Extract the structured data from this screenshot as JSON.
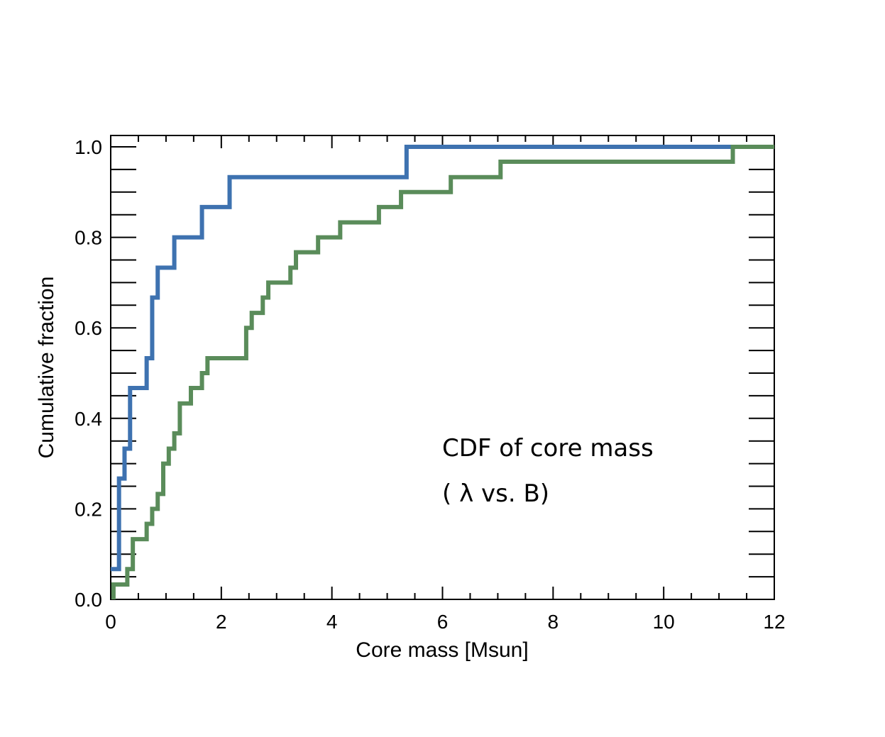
{
  "chart_data": {
    "type": "line",
    "step": true,
    "title": "",
    "xlabel": "Core mass [Msun]",
    "ylabel": "Cumulative fraction",
    "xlim": [
      0,
      12
    ],
    "ylim": [
      0,
      1.02
    ],
    "xticks": [
      0,
      2,
      4,
      6,
      8,
      10,
      12
    ],
    "xtick_labels": [
      "0",
      "2",
      "4",
      "6",
      "8",
      "10",
      "12"
    ],
    "yticks": [
      0.0,
      0.2,
      0.4,
      0.6,
      0.8,
      1.0
    ],
    "ytick_labels": [
      "0.0",
      "0.2",
      "0.4",
      "0.6",
      "0.8",
      "1.0"
    ],
    "annotations": [
      "CDF of core mass",
      "( λ vs. B)"
    ],
    "series": [
      {
        "name": "λ",
        "color": "#3e72b0",
        "x": [
          0,
          0.15,
          0.25,
          0.35,
          0.65,
          0.75,
          0.85,
          1.15,
          1.65,
          2.15,
          5.35,
          12
        ],
        "y": [
          0.067,
          0.267,
          0.333,
          0.467,
          0.533,
          0.667,
          0.733,
          0.8,
          0.867,
          0.933,
          1.0,
          1.0
        ]
      },
      {
        "name": "B",
        "color": "#5a8c5a",
        "x": [
          0.05,
          0.3,
          0.4,
          0.65,
          0.75,
          0.85,
          0.95,
          1.05,
          1.15,
          1.25,
          1.45,
          1.65,
          1.75,
          2.45,
          2.55,
          2.75,
          2.85,
          3.25,
          3.35,
          3.75,
          4.15,
          4.85,
          5.25,
          6.15,
          7.05,
          11.25,
          12
        ],
        "y": [
          0.033,
          0.067,
          0.133,
          0.167,
          0.2,
          0.233,
          0.3,
          0.333,
          0.367,
          0.433,
          0.467,
          0.5,
          0.533,
          0.6,
          0.633,
          0.667,
          0.7,
          0.733,
          0.767,
          0.8,
          0.833,
          0.867,
          0.9,
          0.933,
          0.967,
          1.0,
          1.0
        ]
      }
    ]
  }
}
